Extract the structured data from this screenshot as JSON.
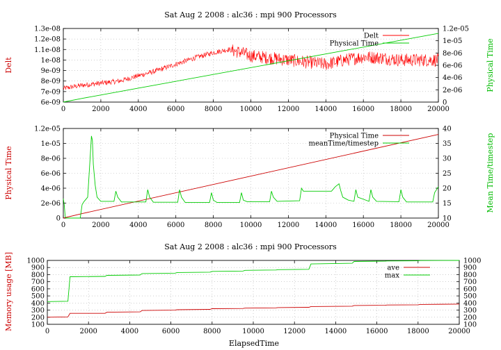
{
  "chart_data": [
    {
      "type": "line",
      "title": "Sat Aug 2 2008 : alc36 : mpi 900 Processors",
      "xlabel": "",
      "ylabel": "Delt",
      "y2label": "Physical Time",
      "xlim": [
        0,
        20000
      ],
      "ylim": [
        6e-09,
        1.3e-08
      ],
      "y2lim": [
        0,
        1.2e-05
      ],
      "x_ticks": [
        "0",
        "2000",
        "4000",
        "6000",
        "8000",
        "10000",
        "12000",
        "14000",
        "16000",
        "18000",
        "20000"
      ],
      "y_ticks": [
        "6e-09",
        "7e-09",
        "8e-09",
        "9e-09",
        "1e-08",
        "1.1e-08",
        "1.2e-08",
        "1.3e-08"
      ],
      "y2_ticks": [
        "0",
        "2e-06",
        "4e-06",
        "6e-06",
        "8e-06",
        "1e-05",
        "1.2e-05"
      ],
      "grid": true,
      "legend_position": "top-right",
      "series": [
        {
          "name": "Delt",
          "axis": "y",
          "color": "#ff0000",
          "noisy": true,
          "x": [
            0,
            1000,
            2000,
            3000,
            4000,
            5000,
            6000,
            7000,
            8000,
            8800,
            9500,
            10000,
            11000,
            12000,
            13000,
            14000,
            15000,
            16000,
            17000,
            18000,
            19000,
            20000
          ],
          "values": [
            7.3e-09,
            7.6e-09,
            7.8e-09,
            8e-09,
            8.5e-09,
            9e-09,
            9.6e-09,
            1.02e-08,
            1.07e-08,
            1.1e-08,
            1.07e-08,
            1.04e-08,
            1.02e-08,
            1e-08,
            9.8e-09,
            9.6e-09,
            1e-08,
            1.03e-08,
            1.02e-08,
            1e-08,
            1e-08,
            1e-08
          ]
        },
        {
          "name": "Physical Time",
          "axis": "y2",
          "color": "#00cc00",
          "noisy": false,
          "x": [
            0,
            1000,
            20000
          ],
          "values": [
            0,
            6e-07,
            1.12e-05
          ]
        }
      ]
    },
    {
      "type": "line",
      "title": "",
      "xlabel": "",
      "ylabel": "Physical Time",
      "y2label": "Mean Time/timestep",
      "xlim": [
        0,
        20000
      ],
      "ylim": [
        0,
        1.2e-05
      ],
      "y2lim": [
        10,
        40
      ],
      "x_ticks": [
        "0",
        "2000",
        "4000",
        "6000",
        "8000",
        "10000",
        "12000",
        "14000",
        "16000",
        "18000",
        "20000"
      ],
      "y_ticks": [
        "0",
        "2e-06",
        "4e-06",
        "6e-06",
        "8e-06",
        "1e-05",
        "1.2e-05"
      ],
      "y2_ticks": [
        "10",
        "15",
        "20",
        "25",
        "30",
        "35",
        "40"
      ],
      "grid": true,
      "legend_position": "top-right",
      "series": [
        {
          "name": "Physical Time",
          "axis": "y",
          "color": "#cc0000",
          "noisy": false,
          "x": [
            0,
            1000,
            20000
          ],
          "values": [
            0,
            6e-07,
            1.12e-05
          ]
        },
        {
          "name": "meanTime/timestep",
          "axis": "y2",
          "color": "#00cc00",
          "noisy": false,
          "x": [
            0,
            50,
            100,
            150,
            300,
            900,
            1000,
            1100,
            1300,
            1400,
            1500,
            1550,
            1600,
            1700,
            1800,
            2000,
            2700,
            2800,
            2900,
            3100,
            4400,
            4500,
            4600,
            4800,
            6100,
            6200,
            6300,
            6500,
            7800,
            7900,
            8000,
            8200,
            9400,
            9500,
            9600,
            9800,
            11000,
            11100,
            11200,
            11400,
            12600,
            12700,
            12800,
            14300,
            14500,
            14700,
            14800,
            14900,
            15200,
            15500,
            15600,
            15700,
            16300,
            16400,
            16500,
            16700,
            17900,
            18000,
            18100,
            18300,
            19700,
            19800,
            20000
          ],
          "values": [
            16.5,
            14.5,
            10.5,
            10,
            10,
            10,
            14.5,
            15.5,
            17,
            27,
            37.5,
            36,
            28,
            21,
            17,
            15.6,
            15.6,
            19,
            17,
            15.4,
            15.4,
            19.5,
            17,
            15.3,
            15.3,
            19.5,
            17,
            15.2,
            15.2,
            18.5,
            16,
            15.2,
            15.2,
            18.5,
            16,
            15.5,
            15.5,
            19,
            17,
            15.6,
            15.8,
            20,
            19,
            19,
            20.5,
            21.5,
            19,
            17,
            16,
            15.6,
            19.5,
            17,
            15.6,
            19.5,
            17,
            15.6,
            15.5,
            19.5,
            17,
            15.4,
            15.4,
            18.5,
            20.5
          ]
        }
      ]
    },
    {
      "type": "line",
      "title": "Sat Aug 2 2008 : alc36 : mpi 900 Processors",
      "xlabel": "ElapsedTime",
      "ylabel": "Memory usage [MB]",
      "y2label": "",
      "xlim": [
        0,
        20000
      ],
      "ylim": [
        100,
        1000
      ],
      "y2lim": [
        100,
        1000
      ],
      "x_ticks": [
        "0",
        "2000",
        "4000",
        "6000",
        "8000",
        "10000",
        "12000",
        "14000",
        "16000",
        "18000",
        "20000"
      ],
      "y_ticks": [
        "100",
        "200",
        "300",
        "400",
        "500",
        "600",
        "700",
        "800",
        "900",
        "1000"
      ],
      "y2_ticks": [
        "100",
        "200",
        "300",
        "400",
        "500",
        "600",
        "700",
        "800",
        "900",
        "1000"
      ],
      "grid": true,
      "legend_position": "top-right",
      "series": [
        {
          "name": "ave",
          "axis": "y",
          "color": "#cc0000",
          "noisy": false,
          "x": [
            0,
            1000,
            1100,
            2800,
            2900,
            4500,
            4600,
            6200,
            6300,
            7900,
            8000,
            9500,
            9600,
            11100,
            11200,
            12700,
            12800,
            14800,
            14900,
            16400,
            16500,
            18000,
            18100,
            20000
          ],
          "values": [
            200,
            205,
            255,
            255,
            270,
            275,
            295,
            300,
            305,
            310,
            320,
            323,
            328,
            332,
            336,
            340,
            350,
            355,
            365,
            368,
            372,
            375,
            380,
            385
          ]
        },
        {
          "name": "max",
          "axis": "y",
          "color": "#00cc00",
          "noisy": false,
          "x": [
            0,
            1000,
            1100,
            2800,
            2900,
            4500,
            4600,
            6200,
            6300,
            7900,
            8000,
            9500,
            9600,
            11100,
            11200,
            12700,
            12800,
            14800,
            14900,
            16400,
            16500,
            18000,
            18100,
            20000
          ],
          "values": [
            420,
            425,
            770,
            775,
            790,
            795,
            815,
            820,
            830,
            835,
            845,
            850,
            860,
            865,
            870,
            875,
            950,
            960,
            985,
            990,
            992,
            995,
            998,
            1000
          ]
        }
      ]
    }
  ]
}
